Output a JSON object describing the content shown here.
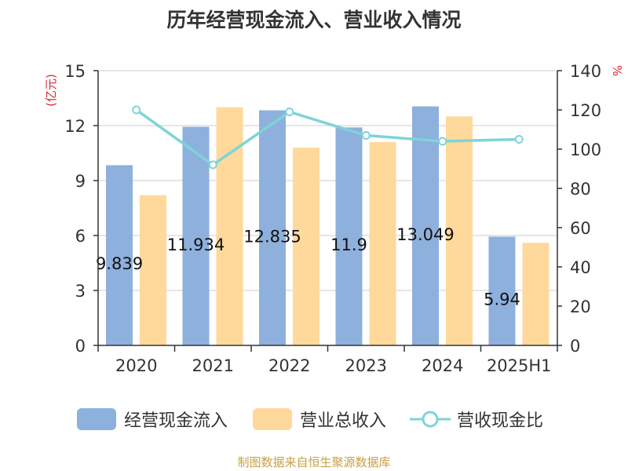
{
  "title": "历年经营现金流入、营业收入情况",
  "source": "制图数据来自恒生聚源数据库",
  "colors": {
    "cash": "#8eb0dc",
    "revenue": "#fed99b",
    "ratio": "#7fd3d8"
  },
  "chart_data": {
    "type": "bar",
    "categories": [
      "2020",
      "2021",
      "2022",
      "2023",
      "2024",
      "2025H1"
    ],
    "series": [
      {
        "name": "经营现金流入",
        "axis": "left",
        "type": "bar",
        "values": [
          9.839,
          11.934,
          12.835,
          11.9,
          13.049,
          5.94
        ],
        "labels": [
          "9.839",
          "11.934",
          "12.835",
          "11.9",
          "13.049",
          "5.94"
        ]
      },
      {
        "name": "营业总收入",
        "axis": "left",
        "type": "bar",
        "values": [
          8.2,
          13.0,
          10.8,
          11.1,
          12.5,
          5.6
        ]
      },
      {
        "name": "营收现金比",
        "axis": "right",
        "type": "line",
        "values": [
          120,
          92,
          119,
          107,
          104,
          105
        ]
      }
    ],
    "ylabel_left": "(亿元)",
    "ylabel_right": "%",
    "ylim_left": [
      0,
      15
    ],
    "yticks_left": [
      "0",
      "3",
      "6",
      "9",
      "12",
      "15"
    ],
    "ylim_right": [
      0,
      140
    ],
    "yticks_right": [
      "0",
      "20",
      "40",
      "60",
      "80",
      "100",
      "120",
      "140"
    ],
    "grid": true,
    "legend_position": "bottom"
  }
}
